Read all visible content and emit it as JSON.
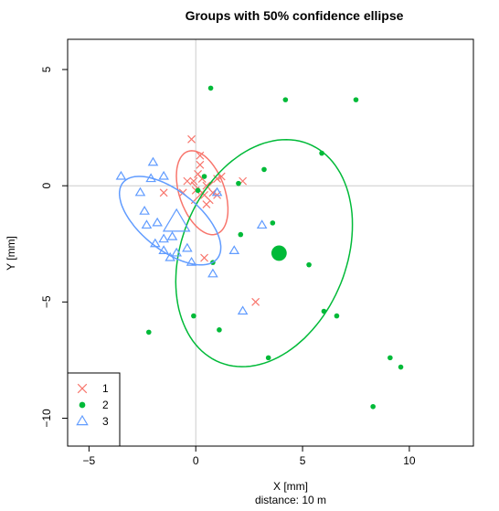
{
  "chart_data": {
    "type": "scatter",
    "title": "Groups with 50% confidence ellipse",
    "xlabel": "X [mm]",
    "subtitle": "distance: 10 m",
    "ylabel": "Y [mm]",
    "xlim": [
      -6,
      13
    ],
    "ylim": [
      -11.2,
      6.3
    ],
    "xticks": [
      -5,
      0,
      5,
      10
    ],
    "yticks": [
      -10,
      -5,
      0,
      5
    ],
    "reference_lines": {
      "x": 0,
      "y": 0,
      "color": "#cccccc"
    },
    "legend": {
      "position": "bottom-left"
    },
    "series": [
      {
        "name": "1",
        "marker": "x",
        "color": "#f8766d",
        "points": [
          [
            -0.2,
            2.0
          ],
          [
            0.2,
            1.3
          ],
          [
            0.2,
            0.9
          ],
          [
            0.1,
            0.5
          ],
          [
            -0.1,
            0.2
          ],
          [
            0.3,
            0.3
          ],
          [
            -0.4,
            0.2
          ],
          [
            -0.6,
            -0.3
          ],
          [
            -1.5,
            -0.3
          ],
          [
            0.0,
            -0.2
          ],
          [
            0.5,
            0.0
          ],
          [
            0.8,
            -0.3
          ],
          [
            1.0,
            -0.4
          ],
          [
            1.0,
            0.3
          ],
          [
            1.2,
            0.4
          ],
          [
            2.2,
            0.2
          ],
          [
            0.4,
            -0.4
          ],
          [
            0.5,
            -0.8
          ],
          [
            0.4,
            -3.1
          ],
          [
            2.8,
            -5.0
          ]
        ],
        "center": [
          0.3,
          -0.3
        ],
        "ellipse": {
          "center": [
            0.3,
            -0.3
          ],
          "semi_major": 1.9,
          "semi_minor": 1.05,
          "angle_deg": -68
        }
      },
      {
        "name": "2",
        "marker": "dot",
        "color": "#00ba38",
        "points": [
          [
            0.7,
            4.2
          ],
          [
            4.2,
            3.7
          ],
          [
            7.5,
            3.7
          ],
          [
            5.9,
            1.4
          ],
          [
            3.2,
            0.7
          ],
          [
            2.0,
            0.1
          ],
          [
            0.4,
            0.4
          ],
          [
            0.1,
            -0.2
          ],
          [
            3.6,
            -1.6
          ],
          [
            2.1,
            -2.1
          ],
          [
            0.8,
            -3.3
          ],
          [
            5.3,
            -3.4
          ],
          [
            -0.1,
            -5.6
          ],
          [
            6.0,
            -5.4
          ],
          [
            6.6,
            -5.6
          ],
          [
            1.1,
            -6.2
          ],
          [
            -2.2,
            -6.3
          ],
          [
            3.4,
            -7.4
          ],
          [
            9.1,
            -7.4
          ],
          [
            9.6,
            -7.8
          ],
          [
            8.3,
            -9.5
          ]
        ],
        "center": [
          3.9,
          -2.9
        ],
        "ellipse": {
          "center": [
            3.2,
            -2.9
          ],
          "semi_major": 5.15,
          "semi_minor": 3.8,
          "angle_deg": 62
        }
      },
      {
        "name": "3",
        "marker": "triangle",
        "color": "#619cff",
        "points": [
          [
            -3.5,
            0.4
          ],
          [
            -2.0,
            1.0
          ],
          [
            -1.5,
            0.4
          ],
          [
            -2.1,
            0.3
          ],
          [
            -2.6,
            -0.3
          ],
          [
            -2.4,
            -1.1
          ],
          [
            -2.3,
            -1.7
          ],
          [
            -1.8,
            -1.6
          ],
          [
            -1.5,
            -2.3
          ],
          [
            -1.1,
            -2.2
          ],
          [
            -1.5,
            -2.8
          ],
          [
            -1.9,
            -2.5
          ],
          [
            -0.9,
            -2.9
          ],
          [
            -0.4,
            -2.7
          ],
          [
            -1.2,
            -3.1
          ],
          [
            -0.2,
            -3.3
          ],
          [
            0.8,
            -3.8
          ],
          [
            1.0,
            -0.3
          ],
          [
            1.8,
            -2.8
          ],
          [
            3.1,
            -1.7
          ],
          [
            2.2,
            -5.4
          ]
        ],
        "center": [
          -0.9,
          -1.6
        ],
        "ellipse": {
          "center": [
            -1.2,
            -1.5
          ],
          "semi_major": 2.75,
          "semi_minor": 1.3,
          "angle_deg": 145
        }
      }
    ]
  }
}
